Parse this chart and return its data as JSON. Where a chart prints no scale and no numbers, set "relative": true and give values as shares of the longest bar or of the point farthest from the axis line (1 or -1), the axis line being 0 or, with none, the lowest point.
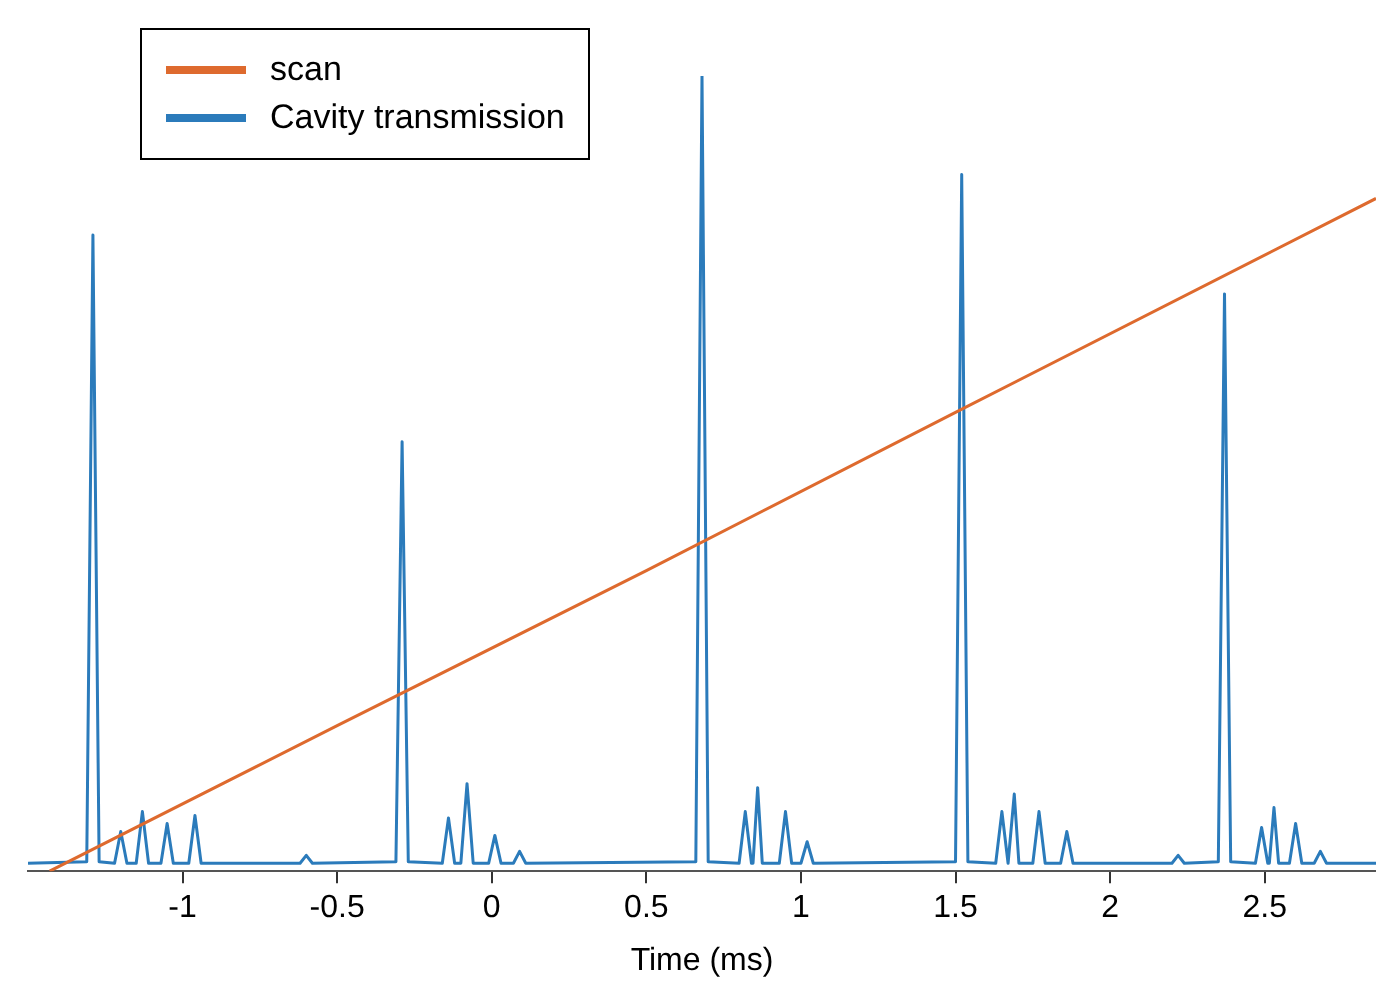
{
  "chart_data": {
    "type": "line",
    "relative": true,
    "xlabel": "Time (ms)",
    "xlim": [
      -1.5,
      2.86
    ],
    "xticks": [
      -1,
      -0.5,
      0,
      0.5,
      1,
      1.5,
      2,
      2.5
    ],
    "grid": false,
    "legend": "top left",
    "marker": "none",
    "line_style": "solid",
    "series": [
      {
        "name": "scan",
        "color": "#de6a2e",
        "x": [
          -1.43,
          -0.5,
          0.5,
          1.5,
          2.86
        ],
        "values": [
          0,
          0.183,
          0.378,
          0.577,
          0.846
        ]
      },
      {
        "name": "Cavity transmission",
        "color": "#2b7bbb",
        "x": [
          -1.5,
          -1.31,
          -1.29,
          -1.27,
          -1.22,
          -1.2,
          -1.18,
          -1.15,
          -1.13,
          -1.11,
          -1.07,
          -1.05,
          -1.03,
          -0.98,
          -0.96,
          -0.94,
          -0.62,
          -0.6,
          -0.58,
          -0.31,
          -0.29,
          -0.27,
          -0.16,
          -0.14,
          -0.12,
          -0.1,
          -0.08,
          -0.06,
          -0.01,
          0.01,
          0.03,
          0.07,
          0.09,
          0.11,
          0.66,
          0.68,
          0.7,
          0.8,
          0.82,
          0.84,
          0.845,
          0.86,
          0.875,
          0.93,
          0.95,
          0.97,
          1.0,
          1.02,
          1.04,
          1.5,
          1.52,
          1.54,
          1.63,
          1.65,
          1.67,
          1.675,
          1.69,
          1.705,
          1.75,
          1.77,
          1.79,
          1.84,
          1.86,
          1.88,
          2.2,
          2.22,
          2.24,
          2.35,
          2.37,
          2.39,
          2.47,
          2.49,
          2.51,
          2.515,
          2.53,
          2.545,
          2.58,
          2.6,
          2.62,
          2.66,
          2.68,
          2.7,
          2.86
        ],
        "values": [
          0.01,
          0.012,
          0.8,
          0.012,
          0.01,
          0.05,
          0.01,
          0.01,
          0.075,
          0.01,
          0.01,
          0.06,
          0.01,
          0.01,
          0.07,
          0.01,
          0.01,
          0.02,
          0.01,
          0.012,
          0.54,
          0.012,
          0.01,
          0.067,
          0.01,
          0.01,
          0.11,
          0.01,
          0.01,
          0.045,
          0.01,
          0.01,
          0.025,
          0.01,
          0.012,
          1,
          0.012,
          0.01,
          0.075,
          0.01,
          0.01,
          0.105,
          0.01,
          0.01,
          0.075,
          0.01,
          0.01,
          0.037,
          0.01,
          0.012,
          0.876,
          0.012,
          0.01,
          0.075,
          0.01,
          0.01,
          0.097,
          0.01,
          0.01,
          0.075,
          0.01,
          0.01,
          0.05,
          0.01,
          0.01,
          0.02,
          0.01,
          0.012,
          0.726,
          0.012,
          0.01,
          0.055,
          0.01,
          0.01,
          0.08,
          0.01,
          0.01,
          0.06,
          0.01,
          0.01,
          0.025,
          0.01,
          0.01
        ]
      }
    ]
  }
}
